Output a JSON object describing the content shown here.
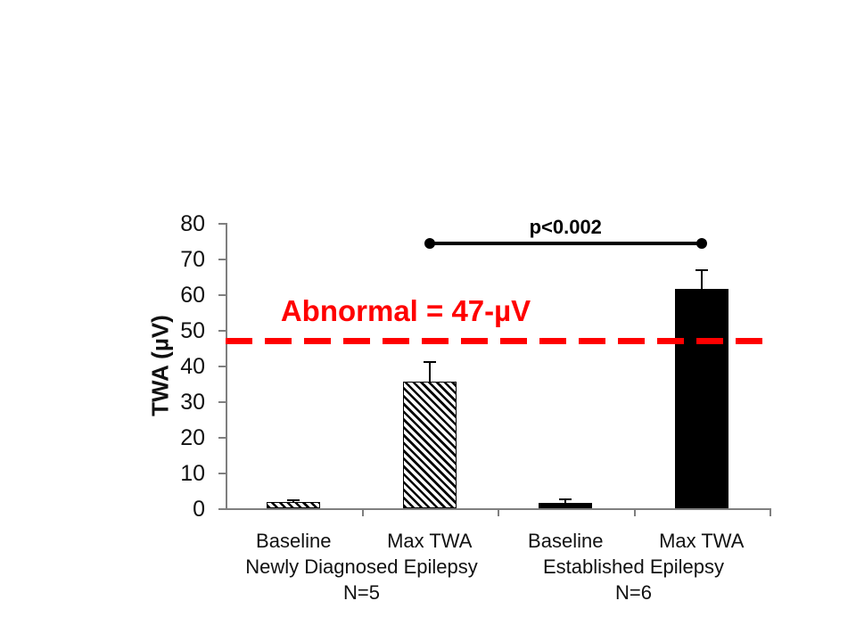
{
  "colors": {
    "bar_fill": "#000000",
    "axis": "#7f7f7f",
    "threshold_red": "#ff0000",
    "text": "#111111",
    "background": "#ffffff"
  },
  "chart_data": {
    "type": "bar",
    "title": "",
    "xlabel": "",
    "ylabel": "TWA (µV)",
    "ylim": [
      0,
      80
    ],
    "yticks": [
      0,
      10,
      20,
      30,
      40,
      50,
      60,
      70,
      80
    ],
    "grid": "off",
    "legend": "none",
    "categories": [
      "Baseline",
      "Max TWA",
      "Baseline",
      "Max TWA"
    ],
    "values": [
      1.7,
      35.5,
      1.6,
      61.5
    ],
    "errors_up": [
      0.6,
      5.5,
      0.8,
      5.2
    ],
    "bar_styles": [
      "hatch",
      "hatch",
      "solid",
      "solid"
    ],
    "groups": [
      {
        "label": "Newly Diagnosed Epilepsy",
        "sublabel": "N=5",
        "span": [
          0,
          1
        ]
      },
      {
        "label": "Established Epilepsy",
        "sublabel": "N=6",
        "span": [
          2,
          3
        ]
      }
    ],
    "annotations": {
      "threshold": {
        "value": 47,
        "label": "Abnormal = 47-µV",
        "color": "#ff0000",
        "line_style": "dashed"
      },
      "significance": {
        "label": "p<0.002",
        "from_category": 1,
        "to_category": 3,
        "y_value": 74.25
      }
    }
  }
}
